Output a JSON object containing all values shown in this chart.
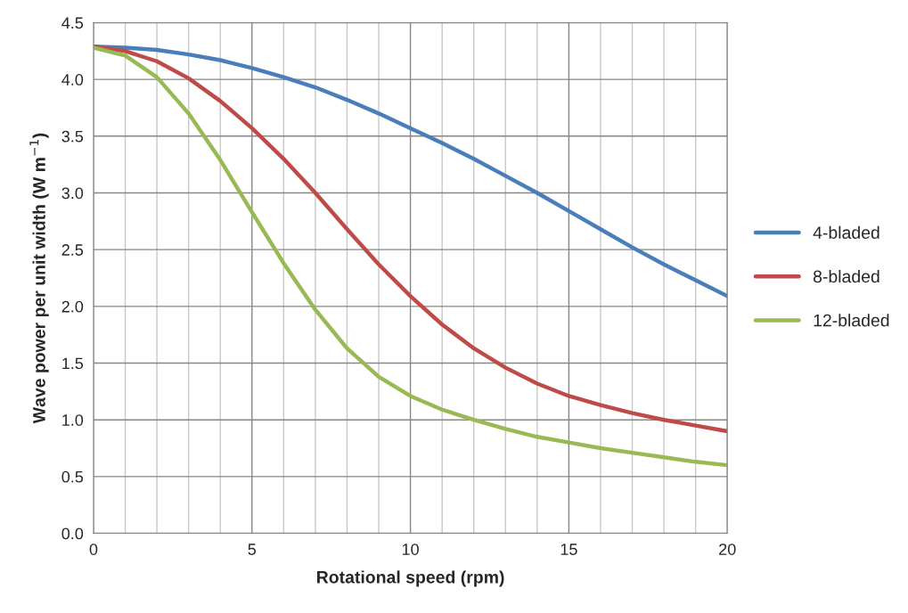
{
  "chart_data": {
    "type": "line",
    "xlabel": "Rotational speed (rpm)",
    "ylabel": "Wave power per unit width (W m$^{−1}$)",
    "x": [
      0,
      1,
      2,
      3,
      4,
      5,
      6,
      7,
      8,
      9,
      10,
      11,
      12,
      13,
      14,
      15,
      16,
      17,
      18,
      19,
      20
    ],
    "series": [
      {
        "name": "4-bladed",
        "color": "#4a7ebb",
        "values": [
          4.29,
          4.28,
          4.26,
          4.22,
          4.17,
          4.1,
          4.02,
          3.93,
          3.82,
          3.7,
          3.57,
          3.44,
          3.3,
          3.15,
          3.0,
          2.84,
          2.68,
          2.52,
          2.37,
          2.23,
          2.09
        ]
      },
      {
        "name": "8-bladed",
        "color": "#be4b48",
        "values": [
          4.29,
          4.25,
          4.16,
          4.01,
          3.81,
          3.57,
          3.3,
          3.0,
          2.68,
          2.37,
          2.09,
          1.84,
          1.63,
          1.46,
          1.32,
          1.21,
          1.13,
          1.06,
          1.0,
          0.95,
          0.9
        ]
      },
      {
        "name": "12-bladed",
        "color": "#98b954",
        "values": [
          4.28,
          4.21,
          4.02,
          3.7,
          3.29,
          2.83,
          2.38,
          1.97,
          1.63,
          1.38,
          1.21,
          1.09,
          1.0,
          0.92,
          0.85,
          0.8,
          0.75,
          0.71,
          0.67,
          0.63,
          0.6
        ]
      }
    ],
    "xlim": [
      0,
      20
    ],
    "xticks": [
      0,
      {
        "value": 1,
        "label": null
      },
      {
        "value": 2,
        "label": null
      },
      {
        "value": 3,
        "label": null
      },
      {
        "value": 4,
        "label": null
      },
      5,
      {
        "value": 6,
        "label": null
      },
      {
        "value": 7,
        "label": null
      },
      {
        "value": 8,
        "label": null
      },
      {
        "value": 9,
        "label": null
      },
      10,
      {
        "value": 11,
        "label": null
      },
      {
        "value": 12,
        "label": null
      },
      {
        "value": 13,
        "label": null
      },
      {
        "value": 14,
        "label": null
      },
      15,
      {
        "value": 16,
        "label": null
      },
      {
        "value": 17,
        "label": null
      },
      {
        "value": 18,
        "label": null
      },
      {
        "value": 19,
        "label": null
      },
      20
    ],
    "ylim": [
      0,
      4.5
    ],
    "yticks": [
      {
        "value": 0,
        "label": "0.0"
      },
      {
        "value": 0.5,
        "label": "0.5"
      },
      {
        "value": 1,
        "label": "1.0"
      },
      {
        "value": 1.5,
        "label": "1.5"
      },
      {
        "value": 2,
        "label": "2.0"
      },
      {
        "value": 2.5,
        "label": "2.5"
      },
      {
        "value": 3,
        "label": "3.0"
      },
      {
        "value": 3.5,
        "label": "3.5"
      },
      {
        "value": 4,
        "label": "4.0"
      },
      {
        "value": 4.5,
        "label": "4.5"
      }
    ],
    "grid": true,
    "legend": "right",
    "marker": "none",
    "line_style": "solid"
  }
}
